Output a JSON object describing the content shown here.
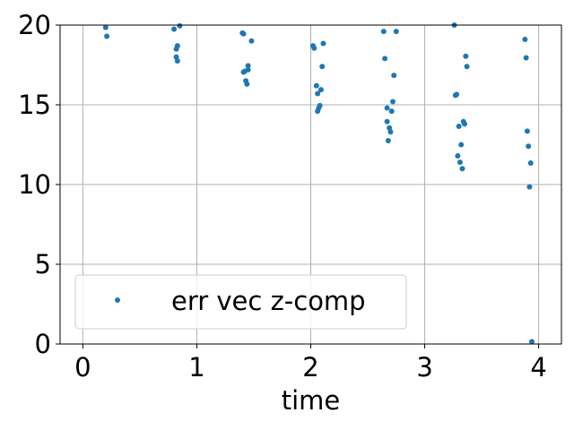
{
  "chart_data": {
    "type": "scatter",
    "title": "",
    "xlabel": "time",
    "ylabel": "",
    "xlim": [
      -0.2,
      4.2
    ],
    "ylim": [
      0,
      20
    ],
    "xticks": [
      0,
      1,
      2,
      3,
      4
    ],
    "yticks": [
      0,
      5,
      10,
      15,
      20
    ],
    "xtick_labels": [
      "0",
      "1",
      "2",
      "3",
      "4"
    ],
    "ytick_labels": [
      "0",
      "5",
      "10",
      "15",
      "20"
    ],
    "grid": true,
    "legend_position": "lower-left",
    "series": [
      {
        "name": "err vec z-comp",
        "color": "#1f77b4",
        "marker": "dot",
        "points": [
          [
            0.2,
            19.85
          ],
          [
            0.21,
            19.3
          ],
          [
            0.8,
            19.75
          ],
          [
            0.82,
            18.0
          ],
          [
            0.82,
            18.5
          ],
          [
            0.83,
            17.75
          ],
          [
            0.83,
            18.7
          ],
          [
            0.85,
            19.95
          ],
          [
            1.4,
            19.5
          ],
          [
            1.41,
            19.45
          ],
          [
            1.41,
            17.05
          ],
          [
            1.42,
            17.1
          ],
          [
            1.43,
            16.5
          ],
          [
            1.44,
            16.3
          ],
          [
            1.45,
            17.2
          ],
          [
            1.45,
            17.45
          ],
          [
            1.48,
            19.0
          ],
          [
            2.02,
            18.7
          ],
          [
            2.03,
            18.55
          ],
          [
            2.05,
            16.2
          ],
          [
            2.06,
            15.7
          ],
          [
            2.06,
            14.6
          ],
          [
            2.07,
            14.8
          ],
          [
            2.08,
            14.95
          ],
          [
            2.09,
            15.95
          ],
          [
            2.1,
            17.4
          ],
          [
            2.11,
            18.85
          ],
          [
            2.64,
            19.6
          ],
          [
            2.65,
            17.9
          ],
          [
            2.67,
            14.8
          ],
          [
            2.67,
            13.95
          ],
          [
            2.68,
            12.75
          ],
          [
            2.69,
            13.55
          ],
          [
            2.7,
            13.3
          ],
          [
            2.71,
            14.6
          ],
          [
            2.72,
            15.2
          ],
          [
            2.73,
            16.85
          ],
          [
            2.75,
            19.6
          ],
          [
            3.26,
            20.0
          ],
          [
            3.27,
            15.6
          ],
          [
            3.28,
            15.65
          ],
          [
            3.29,
            11.8
          ],
          [
            3.3,
            13.65
          ],
          [
            3.31,
            11.4
          ],
          [
            3.32,
            12.5
          ],
          [
            3.33,
            11.0
          ],
          [
            3.34,
            13.95
          ],
          [
            3.35,
            13.8
          ],
          [
            3.36,
            18.05
          ],
          [
            3.37,
            17.4
          ],
          [
            3.88,
            19.1
          ],
          [
            3.89,
            17.95
          ],
          [
            3.9,
            13.35
          ],
          [
            3.91,
            12.4
          ],
          [
            3.92,
            9.85
          ],
          [
            3.93,
            11.35
          ],
          [
            3.94,
            0.15
          ]
        ]
      }
    ]
  }
}
